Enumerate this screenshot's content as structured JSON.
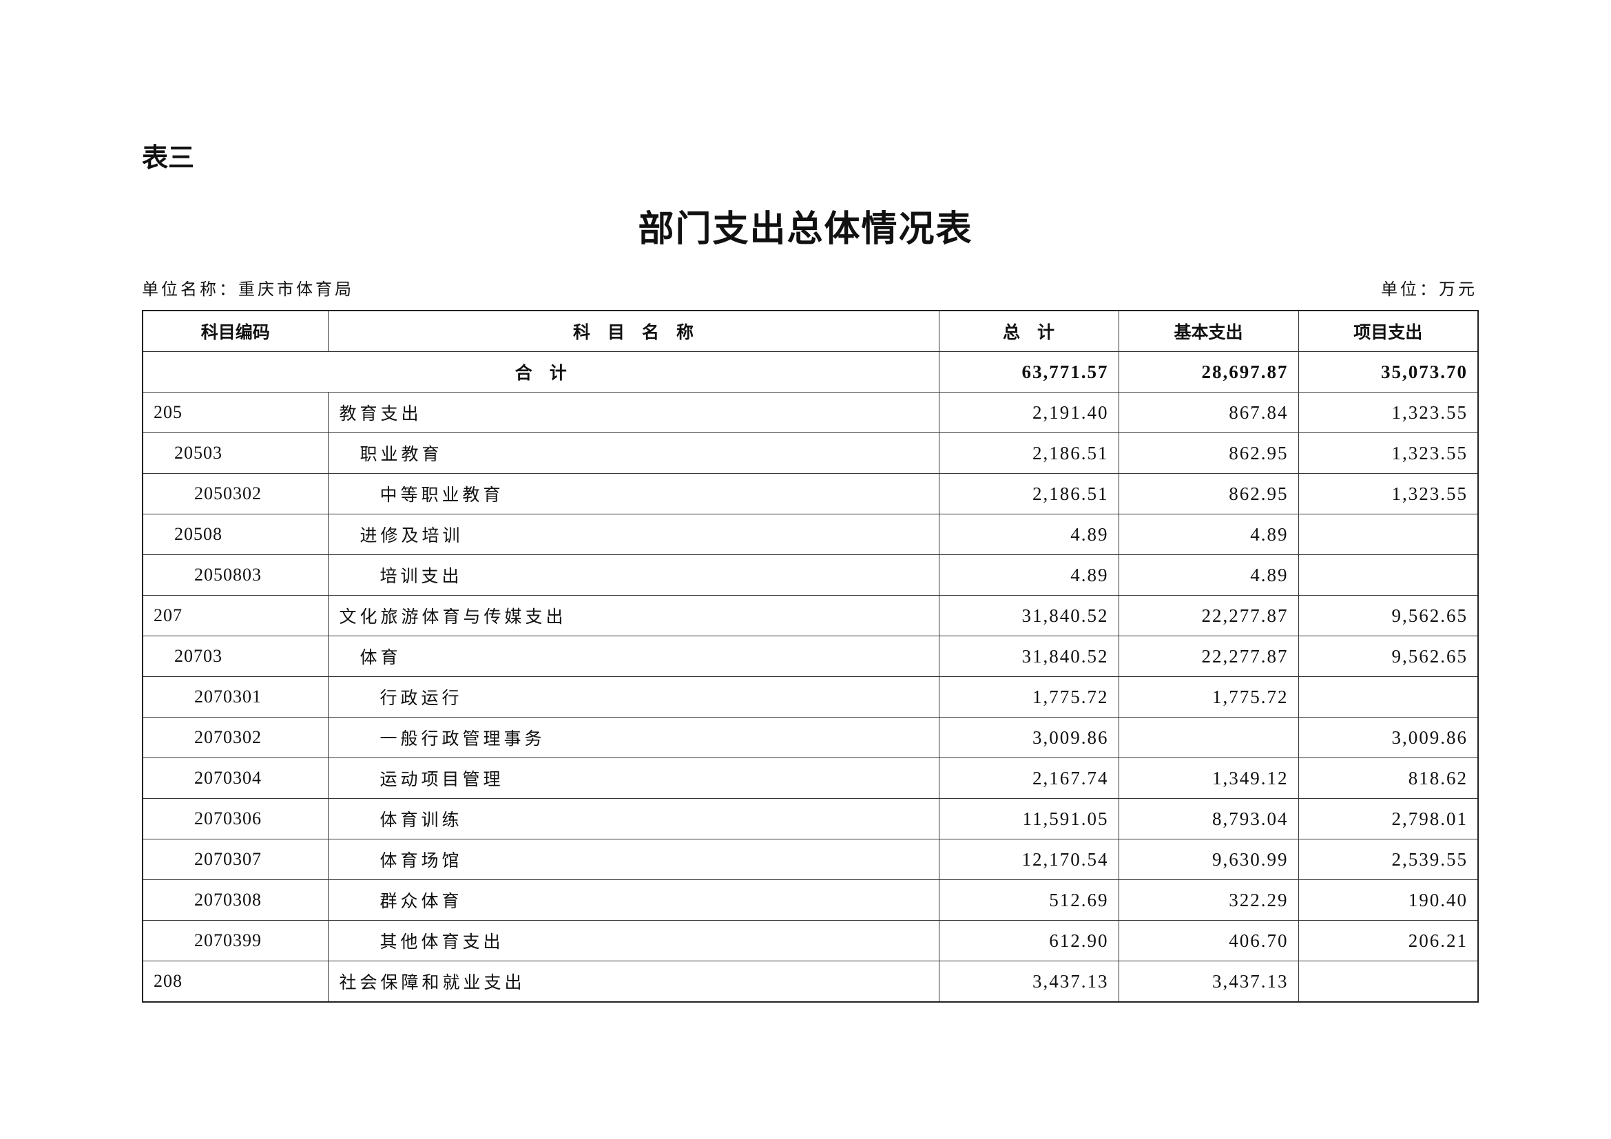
{
  "table_label": "表三",
  "title": "部门支出总体情况表",
  "unit_name": "单位名称：重庆市体育局",
  "unit": "单位：万元",
  "headers": [
    "科目编码",
    "科　目　名　称",
    "总　计",
    "基本支出",
    "项目支出"
  ],
  "total": {
    "label": "合　计",
    "total": "63,771.57",
    "basic": "28,697.87",
    "project": "35,073.70"
  },
  "rows": [
    {
      "code": "205",
      "name": "教育支出",
      "level": 1,
      "total": "2,191.40",
      "basic": "867.84",
      "project": "1,323.55"
    },
    {
      "code": "20503",
      "name": "职业教育",
      "level": 2,
      "total": "2,186.51",
      "basic": "862.95",
      "project": "1,323.55"
    },
    {
      "code": "2050302",
      "name": "中等职业教育",
      "level": 3,
      "total": "2,186.51",
      "basic": "862.95",
      "project": "1,323.55"
    },
    {
      "code": "20508",
      "name": "进修及培训",
      "level": 2,
      "total": "4.89",
      "basic": "4.89",
      "project": ""
    },
    {
      "code": "2050803",
      "name": "培训支出",
      "level": 3,
      "total": "4.89",
      "basic": "4.89",
      "project": ""
    },
    {
      "code": "207",
      "name": "文化旅游体育与传媒支出",
      "level": 1,
      "total": "31,840.52",
      "basic": "22,277.87",
      "project": "9,562.65"
    },
    {
      "code": "20703",
      "name": "体育",
      "level": 2,
      "total": "31,840.52",
      "basic": "22,277.87",
      "project": "9,562.65"
    },
    {
      "code": "2070301",
      "name": "行政运行",
      "level": 3,
      "total": "1,775.72",
      "basic": "1,775.72",
      "project": ""
    },
    {
      "code": "2070302",
      "name": "一般行政管理事务",
      "level": 3,
      "total": "3,009.86",
      "basic": "",
      "project": "3,009.86"
    },
    {
      "code": "2070304",
      "name": "运动项目管理",
      "level": 3,
      "total": "2,167.74",
      "basic": "1,349.12",
      "project": "818.62"
    },
    {
      "code": "2070306",
      "name": "体育训练",
      "level": 3,
      "total": "11,591.05",
      "basic": "8,793.04",
      "project": "2,798.01"
    },
    {
      "code": "2070307",
      "name": "体育场馆",
      "level": 3,
      "total": "12,170.54",
      "basic": "9,630.99",
      "project": "2,539.55"
    },
    {
      "code": "2070308",
      "name": "群众体育",
      "level": 3,
      "total": "512.69",
      "basic": "322.29",
      "project": "190.40"
    },
    {
      "code": "2070399",
      "name": "其他体育支出",
      "level": 3,
      "total": "612.90",
      "basic": "406.70",
      "project": "206.21"
    },
    {
      "code": "208",
      "name": "社会保障和就业支出",
      "level": 1,
      "total": "3,437.13",
      "basic": "3,437.13",
      "project": ""
    }
  ]
}
